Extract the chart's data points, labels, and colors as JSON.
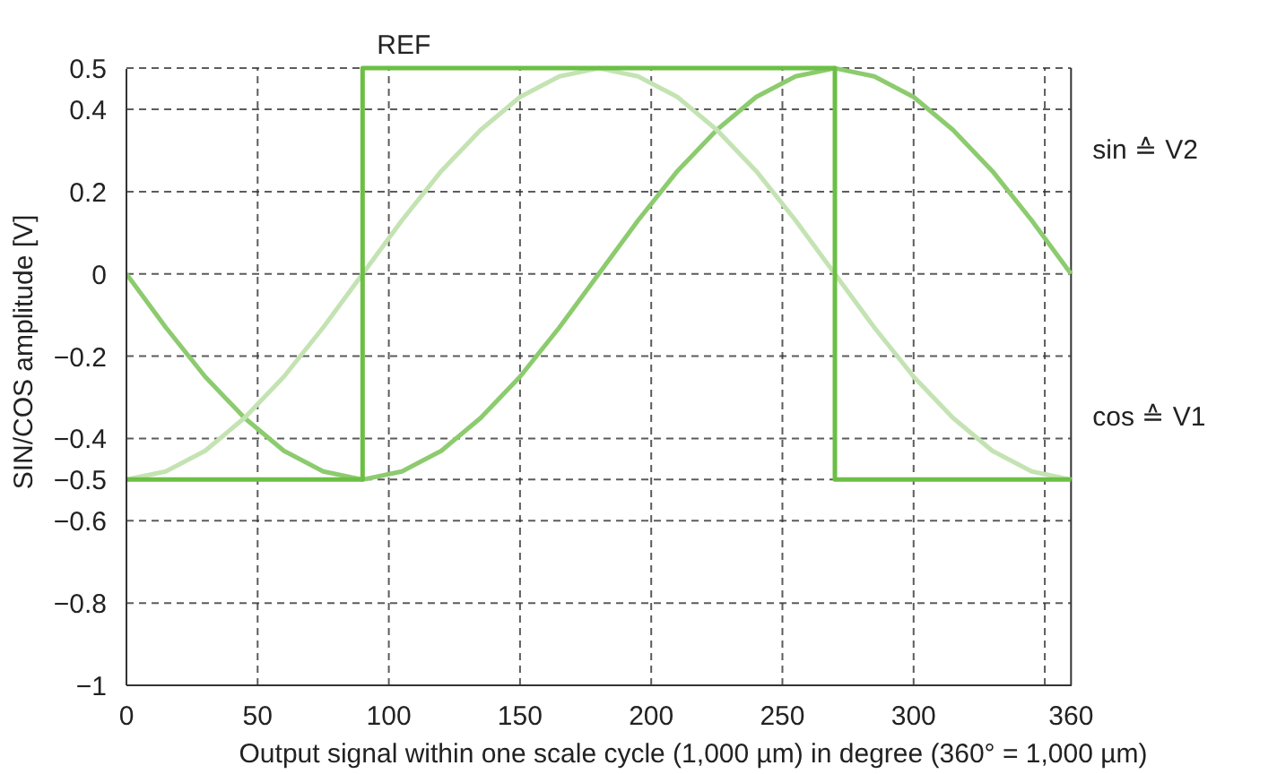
{
  "chart_data": {
    "type": "line",
    "xlabel": "Output signal within one scale cycle (1,000 µm) in degree (360° = 1,000 µm)",
    "ylabel": "SIN/COS amplitude [V]",
    "x": [
      0,
      15,
      30,
      45,
      60,
      75,
      90,
      105,
      120,
      135,
      150,
      165,
      180,
      195,
      210,
      225,
      240,
      255,
      270,
      285,
      300,
      315,
      330,
      345,
      360
    ],
    "series": [
      {
        "color": "#8ccb6e",
        "values": [
          0,
          -0.13,
          -0.25,
          -0.35,
          -0.43,
          -0.48,
          -0.5,
          -0.48,
          -0.43,
          -0.35,
          -0.25,
          -0.13,
          0,
          0.13,
          0.25,
          0.35,
          0.43,
          0.48,
          0.5,
          0.48,
          0.43,
          0.35,
          0.25,
          0.13,
          0
        ]
      },
      {
        "color": "#c4e3b3",
        "values": [
          -0.5,
          -0.48,
          -0.43,
          -0.35,
          -0.25,
          -0.13,
          0,
          0.13,
          0.25,
          0.35,
          0.43,
          0.48,
          0.5,
          0.48,
          0.43,
          0.35,
          0.25,
          0.13,
          0,
          -0.13,
          -0.25,
          -0.35,
          -0.43,
          -0.48,
          -0.5
        ]
      },
      {
        "color": "#6cbf45",
        "x": [
          0,
          90,
          90,
          270,
          270,
          360
        ],
        "values": [
          -0.5,
          -0.5,
          0.5,
          0.5,
          -0.5,
          -0.5
        ]
      }
    ],
    "xlim": [
      0,
      360
    ],
    "ylim": [
      -1,
      0.5
    ],
    "xticks": [
      0,
      50,
      100,
      150,
      200,
      250,
      300,
      {
        "value": 350,
        "label": null
      },
      360
    ],
    "yticks": [
      0.5,
      0.4,
      0.2,
      0,
      {
        "value": -0.2,
        "label": "−0.2"
      },
      {
        "value": -0.4,
        "label": "−0.4"
      },
      {
        "value": -0.5,
        "label": "−0.5"
      },
      {
        "value": -0.6,
        "label": "−0.6"
      },
      {
        "value": -0.8,
        "label": "−0.8"
      },
      {
        "value": -1,
        "label": "−1"
      }
    ],
    "grid": true,
    "marker": "none",
    "line_style": "solid",
    "annotations": [
      {
        "text": "REF",
        "x": 90,
        "y": 0.5
      },
      "sin ≙ V2",
      "cos ≙ V1"
    ]
  }
}
